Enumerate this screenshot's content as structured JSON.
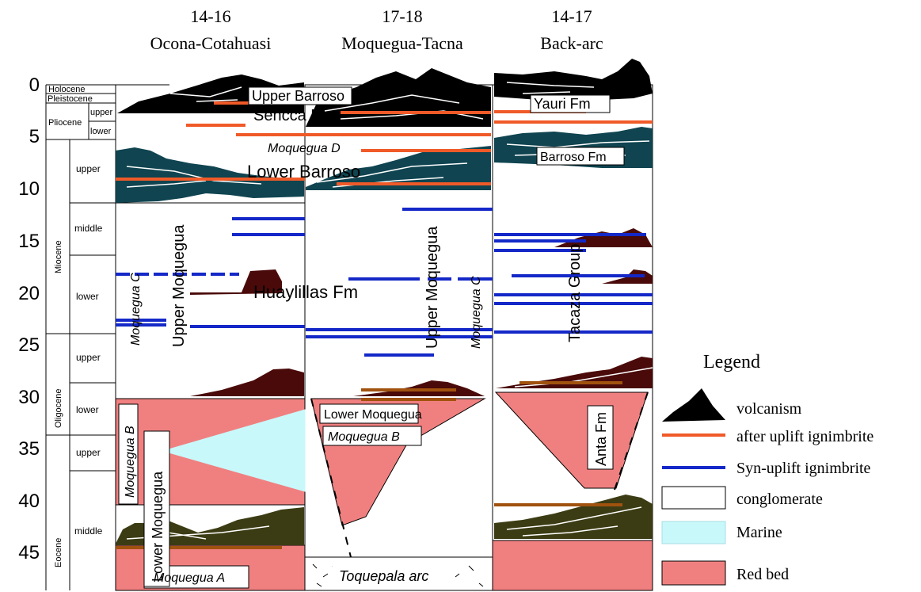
{
  "columns": [
    {
      "number": "14-16",
      "name": "Ocona-Cotahuasi"
    },
    {
      "number": "17-18",
      "name": "Moquegua-Tacna"
    },
    {
      "number": "14-17",
      "name": "Back-arc"
    }
  ],
  "age_ticks": [
    "0",
    "5",
    "10",
    "15",
    "20",
    "25",
    "30",
    "35",
    "40",
    "45"
  ],
  "epochs": {
    "holocene": "Holocene",
    "pleistocene": "Pleistocene",
    "pliocene": "Pliocene",
    "pliocene_upper": "upper",
    "pliocene_lower": "lower",
    "miocene": "Miocene",
    "miocene_upper": "upper",
    "miocene_middle": "middle",
    "miocene_lower": "lower",
    "oligocene": "Oligocene",
    "oligocene_upper": "upper",
    "oligocene_lower": "lower",
    "eocene": "Eocene",
    "eocene_upper": "upper",
    "eocene_middle": "middle"
  },
  "labels": {
    "upper_barroso": "Upper Barroso",
    "sencca_fm": "Sencca Fm",
    "yauri_fm": "Yauri Fm",
    "moquegua_d": "Moquegua D",
    "barroso_fm": "Barroso Fm",
    "lower_barroso": "Lower Barroso",
    "upper_moquegua_1": "Upper Moquegua",
    "moquegua_c_1": "Moquegua C",
    "huaylillas_fm": "Huaylillas Fm",
    "upper_moquegua_2": "Upper Moquegua",
    "moquegua_c_2": "Moquegua C",
    "tacaza_group": "Tacaza Group",
    "lower_moquegua_2": "Lower Moquegua",
    "moquegua_b_2": "Moquegua B",
    "anta_fm": "Anta Fm",
    "moquegua_b_1": "Moquegua B",
    "lower_moquegua_1": "Lower Moquegua",
    "moquegua_a": "Moquegua A",
    "toquepala_arc": "Toquepala arc"
  },
  "legend": {
    "title": "Legend",
    "items": [
      {
        "label": "volcanism",
        "color": "#000000"
      },
      {
        "label": "after uplift ignimbrite",
        "color": "#f05a28"
      },
      {
        "label": "Syn-uplift ignimbrite",
        "color": "#1428c8"
      },
      {
        "label": "conglomerate",
        "color": "#ffffff"
      },
      {
        "label": "Marine",
        "color": "#c8f8fa"
      },
      {
        "label": "Red bed",
        "color": "#f08080"
      }
    ]
  },
  "colors": {
    "volcanic_black": "#000000",
    "volcanic_teal": "#0f4450",
    "volcanic_maroon": "#4a0a0a",
    "volcanic_olive": "#3c3c14",
    "after_uplift": "#f05a28",
    "syn_uplift": "#1428c8",
    "brown_ignimbrite": "#a0520e",
    "red_bed": "#f08080",
    "marine": "#c8f8fa"
  }
}
